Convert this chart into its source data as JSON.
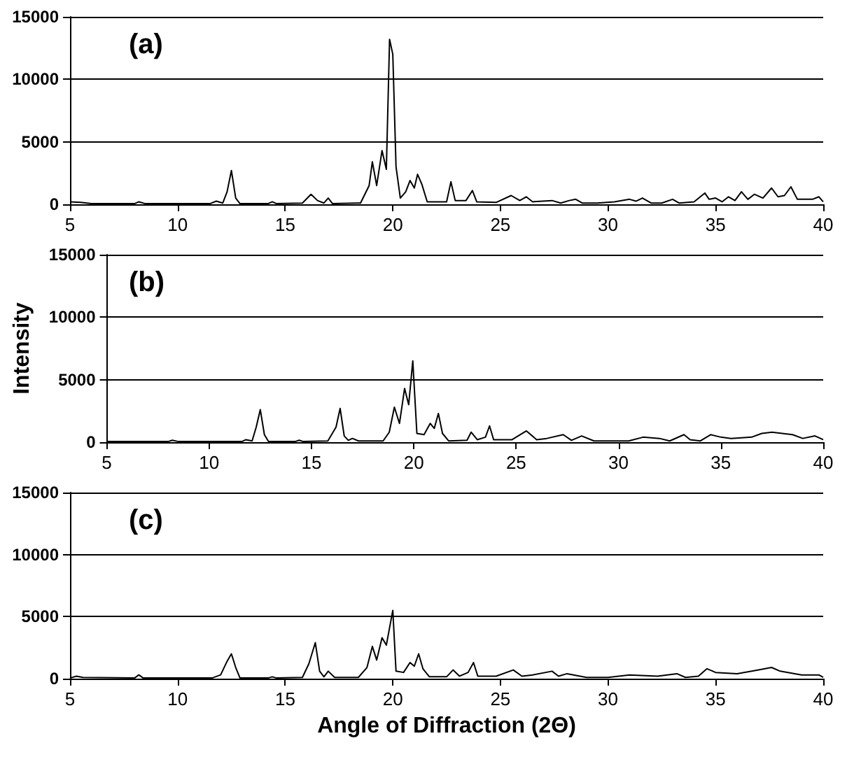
{
  "chart_data": [
    {
      "type": "line",
      "annotations": [
        "(a)"
      ],
      "xlim": [
        5,
        40
      ],
      "ylim": [
        0,
        15000
      ],
      "xticks": [
        5,
        10,
        15,
        20,
        25,
        30,
        35,
        40
      ],
      "yticks": [
        0,
        5000,
        10000,
        15000
      ],
      "grid": "y",
      "marker": "none",
      "line_style": "solid",
      "series": [
        {
          "color": "#000000",
          "x": [
            5,
            5.5,
            6,
            8,
            8.2,
            8.5,
            11.5,
            11.8,
            12.1,
            12.3,
            12.5,
            12.7,
            12.9,
            14.2,
            14.4,
            14.6,
            15.8,
            16.2,
            16.5,
            16.8,
            17,
            17.2,
            18.5,
            18.9,
            19.05,
            19.25,
            19.5,
            19.7,
            19.85,
            20,
            20.15,
            20.35,
            20.6,
            20.8,
            21,
            21.15,
            21.35,
            21.6,
            22.5,
            22.7,
            22.9,
            23.4,
            23.7,
            23.9,
            24.8,
            25.5,
            25.9,
            26.2,
            26.5,
            27.4,
            27.8,
            28.2,
            28.5,
            28.8,
            29.5,
            30.3,
            31,
            31.3,
            31.6,
            32,
            32.5,
            33,
            33.3,
            34,
            34.5,
            34.7,
            35,
            35.3,
            35.6,
            35.9,
            36.2,
            36.5,
            36.8,
            37.2,
            37.6,
            37.9,
            38.2,
            38.5,
            38.8,
            39.5,
            39.8,
            40
          ],
          "values": [
            200,
            150,
            50,
            50,
            200,
            50,
            50,
            250,
            100,
            1000,
            2700,
            500,
            50,
            50,
            200,
            50,
            100,
            800,
            300,
            100,
            500,
            50,
            100,
            1500,
            3400,
            1500,
            4300,
            2800,
            13200,
            12000,
            3000,
            500,
            1000,
            1900,
            1300,
            2400,
            1600,
            200,
            200,
            1800,
            300,
            300,
            1100,
            200,
            150,
            700,
            300,
            600,
            200,
            300,
            100,
            300,
            400,
            100,
            100,
            200,
            400,
            250,
            500,
            100,
            100,
            400,
            100,
            200,
            900,
            400,
            500,
            200,
            600,
            300,
            1000,
            400,
            800,
            500,
            1300,
            600,
            700,
            1400,
            400,
            400,
            600,
            200
          ]
        }
      ]
    },
    {
      "type": "line",
      "ylabel": "Intensity",
      "annotations": [
        "(b)"
      ],
      "xlim": [
        5,
        40
      ],
      "ylim": [
        0,
        15000
      ],
      "xticks": [
        5,
        10,
        15,
        20,
        25,
        30,
        35,
        40
      ],
      "yticks": [
        0,
        5000,
        10000,
        15000
      ],
      "grid": "y",
      "marker": "none",
      "line_style": "solid",
      "series": [
        {
          "color": "#000000",
          "x": [
            5,
            8,
            8.2,
            8.5,
            11.6,
            11.8,
            12.1,
            12.3,
            12.5,
            12.7,
            12.9,
            14.2,
            14.4,
            14.6,
            15.8,
            16.2,
            16.4,
            16.6,
            16.8,
            17,
            17.3,
            18.5,
            18.8,
            19.05,
            19.3,
            19.55,
            19.75,
            19.95,
            20.15,
            20.5,
            20.8,
            21,
            21.2,
            21.4,
            21.7,
            22.6,
            22.8,
            23.1,
            23.5,
            23.7,
            23.9,
            24.8,
            25.5,
            26,
            26.5,
            27.3,
            27.7,
            28.2,
            28.8,
            29.5,
            30.5,
            31.2,
            32,
            32.5,
            33.2,
            33.5,
            34,
            34.5,
            35,
            35.5,
            36.5,
            37,
            37.5,
            38,
            38.5,
            39,
            39.6,
            40
          ],
          "values": [
            50,
            50,
            150,
            50,
            50,
            200,
            100,
            1200,
            2600,
            600,
            50,
            50,
            150,
            50,
            100,
            1200,
            2700,
            500,
            150,
            300,
            100,
            100,
            800,
            2800,
            1500,
            4300,
            3000,
            6500,
            700,
            600,
            1500,
            1100,
            2300,
            700,
            100,
            150,
            800,
            200,
            400,
            1300,
            200,
            200,
            900,
            200,
            300,
            600,
            150,
            500,
            100,
            100,
            100,
            400,
            300,
            100,
            600,
            200,
            100,
            600,
            400,
            300,
            400,
            700,
            800,
            700,
            600,
            300,
            500,
            200
          ]
        }
      ]
    },
    {
      "type": "line",
      "xlabel": "Angle of Diffraction (2Θ)",
      "annotations": [
        "(c)"
      ],
      "xlim": [
        5,
        40
      ],
      "ylim": [
        0,
        15000
      ],
      "xticks": [
        5,
        10,
        15,
        20,
        25,
        30,
        35,
        40
      ],
      "yticks": [
        0,
        5000,
        10000,
        15000
      ],
      "grid": "y",
      "marker": "none",
      "line_style": "solid",
      "series": [
        {
          "color": "#000000",
          "x": [
            5,
            5.3,
            5.6,
            8,
            8.2,
            8.4,
            11.6,
            12,
            12.3,
            12.5,
            12.7,
            12.9,
            14.2,
            14.4,
            14.6,
            15.8,
            16.1,
            16.4,
            16.6,
            16.8,
            17,
            17.3,
            18.4,
            18.8,
            19.05,
            19.25,
            19.5,
            19.7,
            20,
            20.15,
            20.5,
            20.8,
            21,
            21.2,
            21.4,
            21.7,
            22.5,
            22.8,
            23.1,
            23.5,
            23.75,
            23.95,
            24.8,
            25.6,
            26,
            26.5,
            27.4,
            27.7,
            28.1,
            29,
            30,
            31,
            32.3,
            33.2,
            33.6,
            34.2,
            34.6,
            35,
            36,
            37,
            37.6,
            38,
            39,
            39.8,
            40
          ],
          "values": [
            50,
            200,
            100,
            50,
            300,
            50,
            50,
            300,
            1400,
            2000,
            900,
            50,
            50,
            150,
            50,
            100,
            1200,
            2900,
            600,
            150,
            600,
            100,
            100,
            900,
            2600,
            1500,
            3300,
            2700,
            5500,
            600,
            500,
            1300,
            1000,
            2000,
            800,
            150,
            150,
            700,
            200,
            500,
            1300,
            200,
            200,
            700,
            200,
            300,
            600,
            200,
            400,
            100,
            100,
            300,
            200,
            400,
            100,
            200,
            800,
            500,
            400,
            700,
            900,
            600,
            300,
            300,
            100
          ]
        }
      ]
    }
  ]
}
